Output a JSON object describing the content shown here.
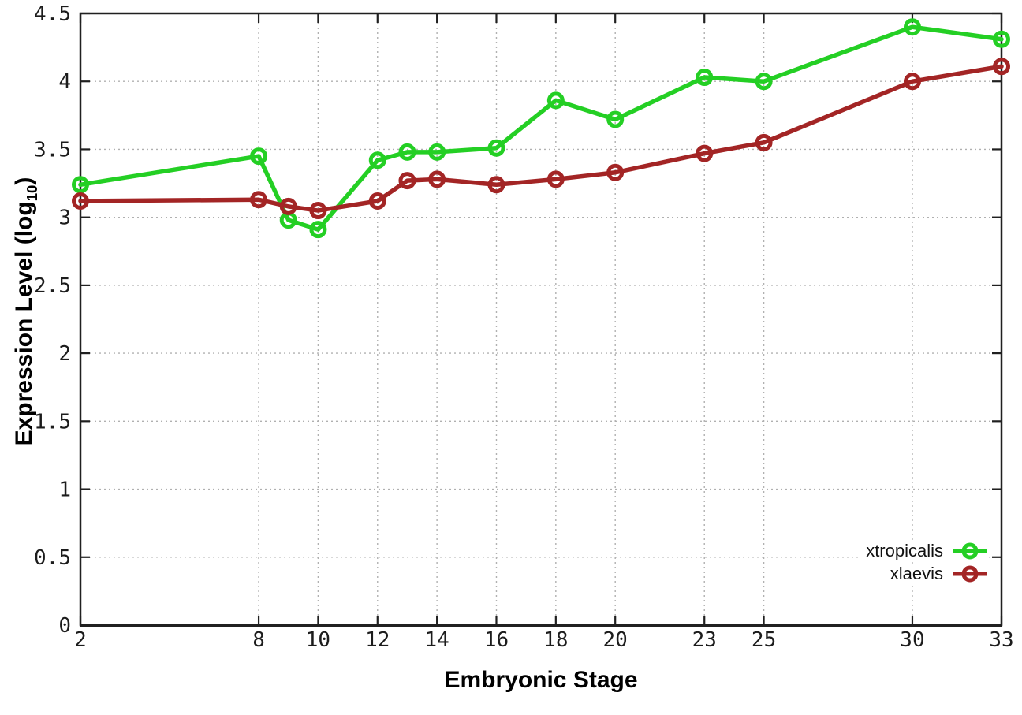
{
  "chart_data": {
    "type": "line",
    "title": "",
    "xlabel": "Embryonic Stage",
    "ylabel": "Expression Level (log10)",
    "ylabel_parts": {
      "main": "Expression Level (log",
      "sub": "10",
      "end": ")"
    },
    "x": [
      2,
      8,
      9,
      10,
      12,
      13,
      14,
      16,
      18,
      20,
      23,
      25,
      30,
      33
    ],
    "series": [
      {
        "name": "xtropicalis",
        "color": "#24cf24",
        "marker": "open-circle",
        "values": [
          3.24,
          3.45,
          2.98,
          2.91,
          3.42,
          3.48,
          3.48,
          3.51,
          3.86,
          3.72,
          4.03,
          4.0,
          4.4,
          4.31
        ]
      },
      {
        "name": "xlaevis",
        "color": "#a32525",
        "marker": "open-circle",
        "values": [
          3.12,
          3.13,
          3.08,
          3.05,
          3.12,
          3.27,
          3.28,
          3.24,
          3.28,
          3.33,
          3.47,
          3.55,
          4.0,
          4.11
        ]
      }
    ],
    "x_ticks": [
      2,
      8,
      10,
      12,
      14,
      16,
      18,
      20,
      23,
      25,
      30,
      33
    ],
    "y_ticks": [
      0,
      0.5,
      1,
      1.5,
      2,
      2.5,
      3,
      3.5,
      4,
      4.5
    ],
    "xlim": [
      2,
      33
    ],
    "ylim": [
      0,
      4.5
    ],
    "grid": true,
    "legend_position": "bottom-right",
    "colors": {
      "axis": "#202020",
      "gridline": "#b0b0b0",
      "tick_text": "#1c1c1c"
    }
  }
}
